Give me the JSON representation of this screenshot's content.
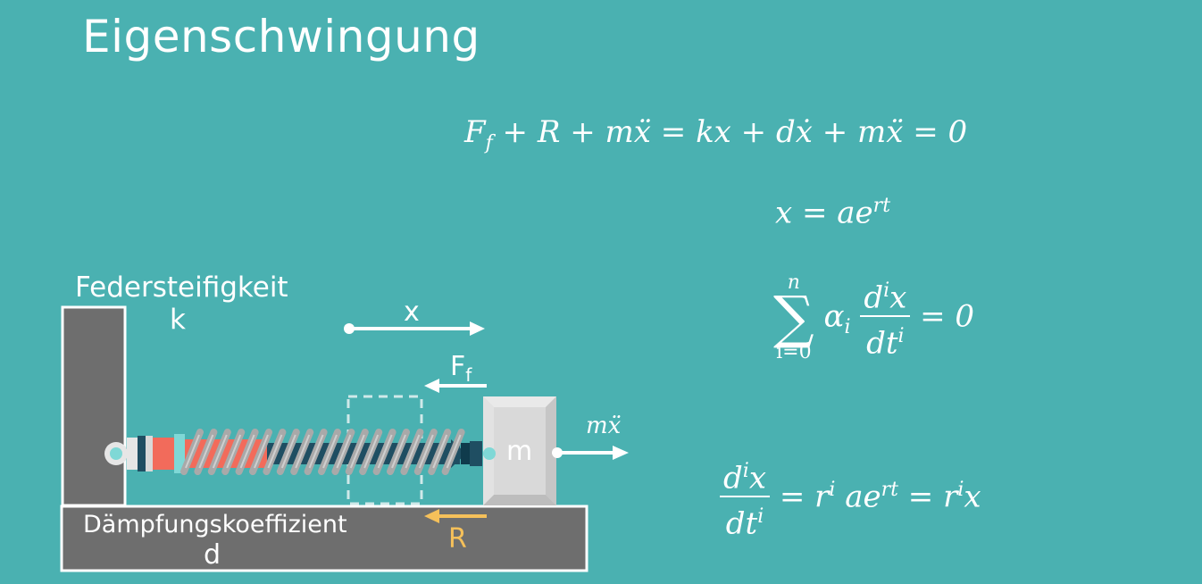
{
  "title": "Eigenschwingung",
  "diagram": {
    "stiffness_label": "Federsteifigkeit",
    "stiffness_symbol": "k",
    "damping_label": "Dämpfungskoeffizient",
    "damping_symbol": "d",
    "displacement_label": "x",
    "spring_force_label": "F",
    "spring_force_sub": "f",
    "resistance_label": "R",
    "mass_label": "m",
    "inertia_label_base": "m",
    "inertia_label_var": "ẍ"
  },
  "equations": {
    "eq1": {
      "ff": "F",
      "ff_sub": "f",
      "rest": " + R + mẍ  = kx + dẋ + mẍ = 0"
    },
    "eq2": {
      "lhs": "x = ae",
      "sup": "rt"
    },
    "eq3": {
      "upper": "n",
      "lower": "i=0",
      "alpha": "α",
      "alpha_sub": "i",
      "num_d": "d",
      "num_sup": "i",
      "num_x": "x",
      "den_dt": "dt",
      "den_sup": "i",
      "rhs": "= 0"
    },
    "eq4": {
      "num_d": "d",
      "num_sup": "i",
      "num_x": "x",
      "den_dt": "dt",
      "den_sup": "i",
      "mid1": " = r",
      "mid1_sup": "i",
      "mid2": " ae",
      "mid2_sup": "rt",
      "mid3": " = r",
      "mid3_sup": "i",
      "end": "x"
    }
  },
  "colors": {
    "background": "#4AB1B1",
    "wall": "#6E6E6E",
    "mass": "#D9D9D9",
    "spring": "#A9A9A9",
    "damper_red": "#F26B5B",
    "rod": "#1F4E62",
    "arrow": "#FFFFFF",
    "friction_arrow": "#F5C05A"
  }
}
